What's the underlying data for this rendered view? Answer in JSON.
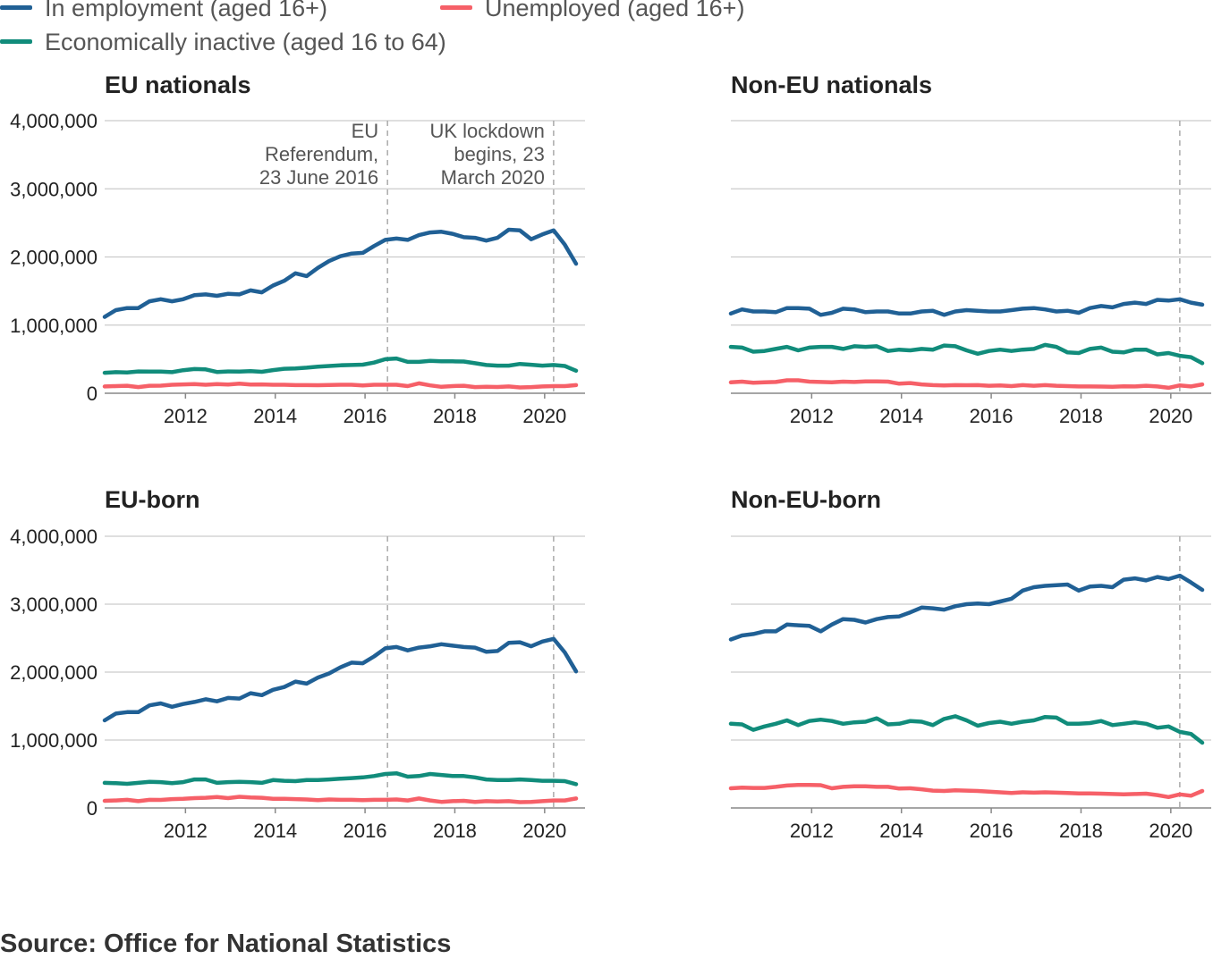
{
  "legend": {
    "items": [
      {
        "label": "In employment (aged 16+)",
        "color": "#206095"
      },
      {
        "label": "Unemployed (aged 16+)",
        "color": "#f66068"
      },
      {
        "label": "Economically inactive (aged 16 to 64)",
        "color": "#118c7b"
      }
    ]
  },
  "source": "Source: Office for National Statistics",
  "chart_data": [
    {
      "type": "line",
      "title": "EU nationals",
      "ylim": [
        0,
        4000000
      ],
      "yticks": [
        "0",
        "1,000,000",
        "2,000,000",
        "3,000,000",
        "4,000,000"
      ],
      "show_y_labels": true,
      "xlim": [
        2010.2,
        2020.9
      ],
      "xticks": [
        "2012",
        "2014",
        "2016",
        "2018",
        "2020"
      ],
      "grid": true,
      "events": [
        {
          "x": 2016.5,
          "label": [
            "EU",
            "Referendum,",
            "23 June 2016"
          ]
        },
        {
          "x": 2020.2,
          "label": [
            "UK lockdown",
            "begins, 23",
            "March 2020"
          ]
        }
      ],
      "x": [
        2010.2,
        2010.45,
        2010.7,
        2010.95,
        2011.2,
        2011.45,
        2011.7,
        2011.95,
        2012.2,
        2012.45,
        2012.7,
        2012.95,
        2013.2,
        2013.45,
        2013.7,
        2013.95,
        2014.2,
        2014.45,
        2014.7,
        2014.95,
        2015.2,
        2015.45,
        2015.7,
        2015.95,
        2016.2,
        2016.45,
        2016.7,
        2016.95,
        2017.2,
        2017.45,
        2017.7,
        2017.95,
        2018.2,
        2018.45,
        2018.7,
        2018.95,
        2019.2,
        2019.45,
        2019.7,
        2019.95,
        2020.2,
        2020.45,
        2020.7
      ],
      "series": [
        {
          "name": "In employment (aged 16+)",
          "color": "#206095",
          "values": [
            1120000,
            1220000,
            1250000,
            1250000,
            1350000,
            1380000,
            1350000,
            1380000,
            1440000,
            1450000,
            1430000,
            1460000,
            1450000,
            1510000,
            1480000,
            1580000,
            1650000,
            1760000,
            1720000,
            1840000,
            1940000,
            2010000,
            2050000,
            2060000,
            2160000,
            2250000,
            2270000,
            2250000,
            2320000,
            2360000,
            2370000,
            2340000,
            2290000,
            2280000,
            2240000,
            2280000,
            2400000,
            2390000,
            2260000,
            2330000,
            2390000,
            2180000,
            1900000
          ]
        },
        {
          "name": "Economically inactive (aged 16 to 64)",
          "color": "#118c7b",
          "values": [
            300000,
            310000,
            305000,
            320000,
            318000,
            318000,
            310000,
            338000,
            355000,
            350000,
            312000,
            320000,
            318000,
            325000,
            315000,
            340000,
            360000,
            365000,
            375000,
            390000,
            400000,
            410000,
            415000,
            420000,
            450000,
            500000,
            510000,
            460000,
            460000,
            475000,
            470000,
            468000,
            465000,
            440000,
            415000,
            405000,
            405000,
            430000,
            418000,
            405000,
            415000,
            400000,
            330000
          ]
        },
        {
          "name": "Unemployed (aged 16+)",
          "color": "#f66068",
          "values": [
            100000,
            105000,
            110000,
            90000,
            110000,
            112000,
            125000,
            130000,
            135000,
            125000,
            135000,
            128000,
            140000,
            128000,
            130000,
            125000,
            125000,
            120000,
            120000,
            118000,
            122000,
            125000,
            125000,
            115000,
            125000,
            125000,
            125000,
            105000,
            145000,
            115000,
            95000,
            105000,
            110000,
            90000,
            95000,
            92000,
            100000,
            85000,
            90000,
            100000,
            105000,
            105000,
            120000
          ]
        }
      ]
    },
    {
      "type": "line",
      "title": "Non-EU nationals",
      "ylim": [
        0,
        4000000
      ],
      "yticks": [
        "0",
        "1,000,000",
        "2,000,000",
        "3,000,000",
        "4,000,000"
      ],
      "show_y_labels": false,
      "xlim": [
        2010.2,
        2020.9
      ],
      "xticks": [
        "2012",
        "2014",
        "2016",
        "2018",
        "2020"
      ],
      "grid": true,
      "events": [
        {
          "x": 2020.2,
          "label": []
        }
      ],
      "x": [
        2010.2,
        2010.45,
        2010.7,
        2010.95,
        2011.2,
        2011.45,
        2011.7,
        2011.95,
        2012.2,
        2012.45,
        2012.7,
        2012.95,
        2013.2,
        2013.45,
        2013.7,
        2013.95,
        2014.2,
        2014.45,
        2014.7,
        2014.95,
        2015.2,
        2015.45,
        2015.7,
        2015.95,
        2016.2,
        2016.45,
        2016.7,
        2016.95,
        2017.2,
        2017.45,
        2017.7,
        2017.95,
        2018.2,
        2018.45,
        2018.7,
        2018.95,
        2019.2,
        2019.45,
        2019.7,
        2019.95,
        2020.2,
        2020.45,
        2020.7
      ],
      "series": [
        {
          "name": "In employment (aged 16+)",
          "color": "#206095",
          "values": [
            1170000,
            1230000,
            1200000,
            1200000,
            1190000,
            1250000,
            1250000,
            1240000,
            1150000,
            1180000,
            1240000,
            1230000,
            1190000,
            1200000,
            1200000,
            1170000,
            1170000,
            1200000,
            1210000,
            1150000,
            1200000,
            1220000,
            1210000,
            1200000,
            1200000,
            1220000,
            1240000,
            1250000,
            1230000,
            1200000,
            1210000,
            1180000,
            1250000,
            1280000,
            1260000,
            1310000,
            1330000,
            1310000,
            1370000,
            1360000,
            1380000,
            1330000,
            1300000
          ]
        },
        {
          "name": "Economically inactive (aged 16 to 64)",
          "color": "#118c7b",
          "values": [
            680000,
            670000,
            610000,
            620000,
            650000,
            680000,
            630000,
            670000,
            680000,
            680000,
            650000,
            690000,
            680000,
            690000,
            620000,
            640000,
            630000,
            650000,
            640000,
            700000,
            690000,
            630000,
            580000,
            620000,
            640000,
            620000,
            640000,
            650000,
            710000,
            680000,
            600000,
            590000,
            650000,
            670000,
            610000,
            600000,
            640000,
            640000,
            570000,
            590000,
            550000,
            530000,
            440000
          ]
        },
        {
          "name": "Unemployed (aged 16+)",
          "color": "#f66068",
          "values": [
            160000,
            170000,
            155000,
            160000,
            165000,
            190000,
            190000,
            170000,
            165000,
            160000,
            170000,
            165000,
            175000,
            175000,
            170000,
            140000,
            150000,
            130000,
            120000,
            115000,
            120000,
            118000,
            120000,
            110000,
            115000,
            105000,
            120000,
            110000,
            120000,
            110000,
            105000,
            100000,
            100000,
            98000,
            95000,
            102000,
            100000,
            110000,
            100000,
            80000,
            115000,
            100000,
            130000
          ]
        }
      ]
    },
    {
      "type": "line",
      "title": "EU-born",
      "ylim": [
        0,
        4000000
      ],
      "yticks": [
        "0",
        "1,000,000",
        "2,000,000",
        "3,000,000",
        "4,000,000"
      ],
      "show_y_labels": true,
      "xlim": [
        2010.2,
        2020.9
      ],
      "xticks": [
        "2012",
        "2014",
        "2016",
        "2018",
        "2020"
      ],
      "grid": true,
      "events": [
        {
          "x": 2016.5,
          "label": []
        },
        {
          "x": 2020.2,
          "label": []
        }
      ],
      "x": [
        2010.2,
        2010.45,
        2010.7,
        2010.95,
        2011.2,
        2011.45,
        2011.7,
        2011.95,
        2012.2,
        2012.45,
        2012.7,
        2012.95,
        2013.2,
        2013.45,
        2013.7,
        2013.95,
        2014.2,
        2014.45,
        2014.7,
        2014.95,
        2015.2,
        2015.45,
        2015.7,
        2015.95,
        2016.2,
        2016.45,
        2016.7,
        2016.95,
        2017.2,
        2017.45,
        2017.7,
        2017.95,
        2018.2,
        2018.45,
        2018.7,
        2018.95,
        2019.2,
        2019.45,
        2019.7,
        2019.95,
        2020.2,
        2020.45,
        2020.7
      ],
      "series": [
        {
          "name": "In employment (aged 16+)",
          "color": "#206095",
          "values": [
            1290000,
            1390000,
            1410000,
            1410000,
            1510000,
            1540000,
            1490000,
            1530000,
            1560000,
            1600000,
            1570000,
            1620000,
            1610000,
            1690000,
            1660000,
            1740000,
            1780000,
            1860000,
            1830000,
            1920000,
            1980000,
            2070000,
            2140000,
            2130000,
            2230000,
            2350000,
            2370000,
            2320000,
            2360000,
            2380000,
            2410000,
            2390000,
            2370000,
            2360000,
            2300000,
            2310000,
            2430000,
            2440000,
            2380000,
            2450000,
            2490000,
            2290000,
            2010000
          ]
        },
        {
          "name": "Economically inactive (aged 16 to 64)",
          "color": "#118c7b",
          "values": [
            370000,
            365000,
            355000,
            370000,
            385000,
            380000,
            365000,
            380000,
            420000,
            420000,
            370000,
            380000,
            385000,
            380000,
            370000,
            410000,
            400000,
            395000,
            410000,
            410000,
            420000,
            430000,
            440000,
            450000,
            470000,
            500000,
            510000,
            460000,
            470000,
            500000,
            485000,
            470000,
            470000,
            450000,
            420000,
            410000,
            410000,
            420000,
            410000,
            400000,
            400000,
            395000,
            350000
          ]
        },
        {
          "name": "Unemployed (aged 16+)",
          "color": "#f66068",
          "values": [
            105000,
            110000,
            120000,
            100000,
            120000,
            118000,
            130000,
            135000,
            145000,
            150000,
            160000,
            145000,
            165000,
            155000,
            150000,
            135000,
            135000,
            130000,
            125000,
            115000,
            125000,
            120000,
            120000,
            115000,
            120000,
            120000,
            125000,
            110000,
            140000,
            110000,
            90000,
            100000,
            105000,
            90000,
            100000,
            95000,
            100000,
            85000,
            90000,
            100000,
            110000,
            110000,
            140000
          ]
        }
      ]
    },
    {
      "type": "line",
      "title": "Non-EU-born",
      "ylim": [
        0,
        4000000
      ],
      "yticks": [
        "0",
        "1,000,000",
        "2,000,000",
        "3,000,000",
        "4,000,000"
      ],
      "show_y_labels": false,
      "xlim": [
        2010.2,
        2020.9
      ],
      "xticks": [
        "2012",
        "2014",
        "2016",
        "2018",
        "2020"
      ],
      "grid": true,
      "events": [
        {
          "x": 2020.2,
          "label": []
        }
      ],
      "x": [
        2010.2,
        2010.45,
        2010.7,
        2010.95,
        2011.2,
        2011.45,
        2011.7,
        2011.95,
        2012.2,
        2012.45,
        2012.7,
        2012.95,
        2013.2,
        2013.45,
        2013.7,
        2013.95,
        2014.2,
        2014.45,
        2014.7,
        2014.95,
        2015.2,
        2015.45,
        2015.7,
        2015.95,
        2016.2,
        2016.45,
        2016.7,
        2016.95,
        2017.2,
        2017.45,
        2017.7,
        2017.95,
        2018.2,
        2018.45,
        2018.7,
        2018.95,
        2019.2,
        2019.45,
        2019.7,
        2019.95,
        2020.2,
        2020.45,
        2020.7
      ],
      "series": [
        {
          "name": "In employment (aged 16+)",
          "color": "#206095",
          "values": [
            2480000,
            2540000,
            2560000,
            2600000,
            2600000,
            2700000,
            2690000,
            2680000,
            2600000,
            2700000,
            2780000,
            2770000,
            2730000,
            2780000,
            2810000,
            2820000,
            2880000,
            2950000,
            2940000,
            2920000,
            2970000,
            3000000,
            3010000,
            3000000,
            3040000,
            3080000,
            3200000,
            3250000,
            3270000,
            3280000,
            3290000,
            3200000,
            3260000,
            3270000,
            3250000,
            3360000,
            3380000,
            3350000,
            3400000,
            3370000,
            3420000,
            3320000,
            3210000
          ]
        },
        {
          "name": "Economically inactive (aged 16 to 64)",
          "color": "#118c7b",
          "values": [
            1240000,
            1230000,
            1150000,
            1200000,
            1240000,
            1290000,
            1220000,
            1280000,
            1300000,
            1280000,
            1240000,
            1260000,
            1270000,
            1320000,
            1230000,
            1240000,
            1280000,
            1270000,
            1220000,
            1310000,
            1350000,
            1290000,
            1210000,
            1250000,
            1270000,
            1240000,
            1270000,
            1290000,
            1340000,
            1330000,
            1240000,
            1240000,
            1250000,
            1280000,
            1220000,
            1240000,
            1260000,
            1240000,
            1180000,
            1200000,
            1120000,
            1090000,
            960000
          ]
        },
        {
          "name": "Unemployed (aged 16+)",
          "color": "#f66068",
          "values": [
            290000,
            300000,
            295000,
            295000,
            310000,
            330000,
            340000,
            340000,
            335000,
            290000,
            310000,
            320000,
            320000,
            310000,
            310000,
            285000,
            290000,
            275000,
            255000,
            250000,
            260000,
            255000,
            250000,
            240000,
            230000,
            220000,
            230000,
            225000,
            230000,
            225000,
            220000,
            215000,
            215000,
            210000,
            205000,
            200000,
            205000,
            210000,
            190000,
            160000,
            200000,
            180000,
            250000
          ]
        }
      ]
    }
  ]
}
